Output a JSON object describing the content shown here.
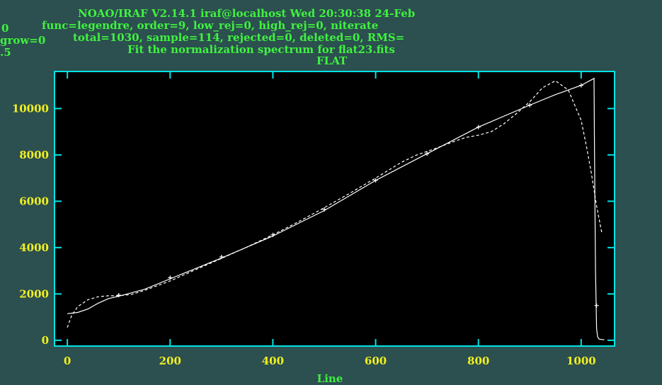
{
  "header": {
    "line1": "NOAO/IRAF V2.14.1 iraf@localhost Wed 20:30:38 24-Feb",
    "line2": "func=legendre, order=9, low_rej=0, high_rej=0, niterate",
    "line3": "total=1030, sample=114, rejected=0, deleted=0, RMS=",
    "line4": "Fit the normalization spectrum for flat23.fits",
    "line5": "FLAT",
    "left1": "0",
    "left2": "grow=0",
    "left3": ".5"
  },
  "colors": {
    "background": "#2c4f4f",
    "frame": "#00e5e5",
    "tick_labels": "#f0f020",
    "title_text": "#3ff23f",
    "plot_bg": "#000000",
    "data": "#ffffff"
  },
  "chart_data": {
    "type": "line",
    "title": "FLAT",
    "xlabel": "Line",
    "ylabel": "",
    "xlim": [
      -25,
      1065
    ],
    "ylim": [
      -250,
      11600
    ],
    "xticks": [
      0,
      200,
      400,
      600,
      800,
      1000
    ],
    "yticks": [
      0,
      2000,
      4000,
      6000,
      8000,
      10000
    ],
    "grid": false,
    "series": [
      {
        "style": "solid",
        "points": [
          [
            0,
            1150
          ],
          [
            20,
            1200
          ],
          [
            40,
            1350
          ],
          [
            60,
            1600
          ],
          [
            80,
            1800
          ],
          [
            100,
            1900
          ],
          [
            150,
            2200
          ],
          [
            200,
            2650
          ],
          [
            300,
            3550
          ],
          [
            400,
            4500
          ],
          [
            500,
            5600
          ],
          [
            600,
            6900
          ],
          [
            700,
            8050
          ],
          [
            800,
            9200
          ],
          [
            900,
            10150
          ],
          [
            950,
            10600
          ],
          [
            1000,
            11000
          ],
          [
            1025,
            11300
          ],
          [
            1026,
            8000
          ],
          [
            1028,
            3000
          ],
          [
            1030,
            500
          ],
          [
            1032,
            150
          ],
          [
            1035,
            50
          ],
          [
            1045,
            20
          ]
        ]
      },
      {
        "style": "dashed",
        "points": [
          [
            0,
            550
          ],
          [
            8,
            1050
          ],
          [
            20,
            1450
          ],
          [
            40,
            1750
          ],
          [
            60,
            1880
          ],
          [
            80,
            1920
          ],
          [
            100,
            1920
          ],
          [
            125,
            1980
          ],
          [
            150,
            2150
          ],
          [
            200,
            2560
          ],
          [
            250,
            3050
          ],
          [
            300,
            3530
          ],
          [
            350,
            4030
          ],
          [
            400,
            4550
          ],
          [
            450,
            5120
          ],
          [
            500,
            5720
          ],
          [
            550,
            6350
          ],
          [
            600,
            7000
          ],
          [
            650,
            7680
          ],
          [
            680,
            8000
          ],
          [
            700,
            8150
          ],
          [
            725,
            8350
          ],
          [
            750,
            8560
          ],
          [
            775,
            8750
          ],
          [
            800,
            8850
          ],
          [
            825,
            9000
          ],
          [
            850,
            9350
          ],
          [
            875,
            9800
          ],
          [
            900,
            10300
          ],
          [
            925,
            10900
          ],
          [
            950,
            11200
          ],
          [
            975,
            10800
          ],
          [
            1000,
            9500
          ],
          [
            1010,
            8400
          ],
          [
            1020,
            7200
          ],
          [
            1030,
            5800
          ],
          [
            1040,
            4650
          ]
        ]
      },
      {
        "style": "markers",
        "points": [
          [
            100,
            1950
          ],
          [
            200,
            2700
          ],
          [
            300,
            3600
          ],
          [
            400,
            4550
          ],
          [
            500,
            5650
          ],
          [
            600,
            6900
          ],
          [
            700,
            8050
          ],
          [
            800,
            9200
          ],
          [
            900,
            10150
          ],
          [
            1000,
            11000
          ],
          [
            1030,
            1500
          ]
        ]
      }
    ]
  }
}
